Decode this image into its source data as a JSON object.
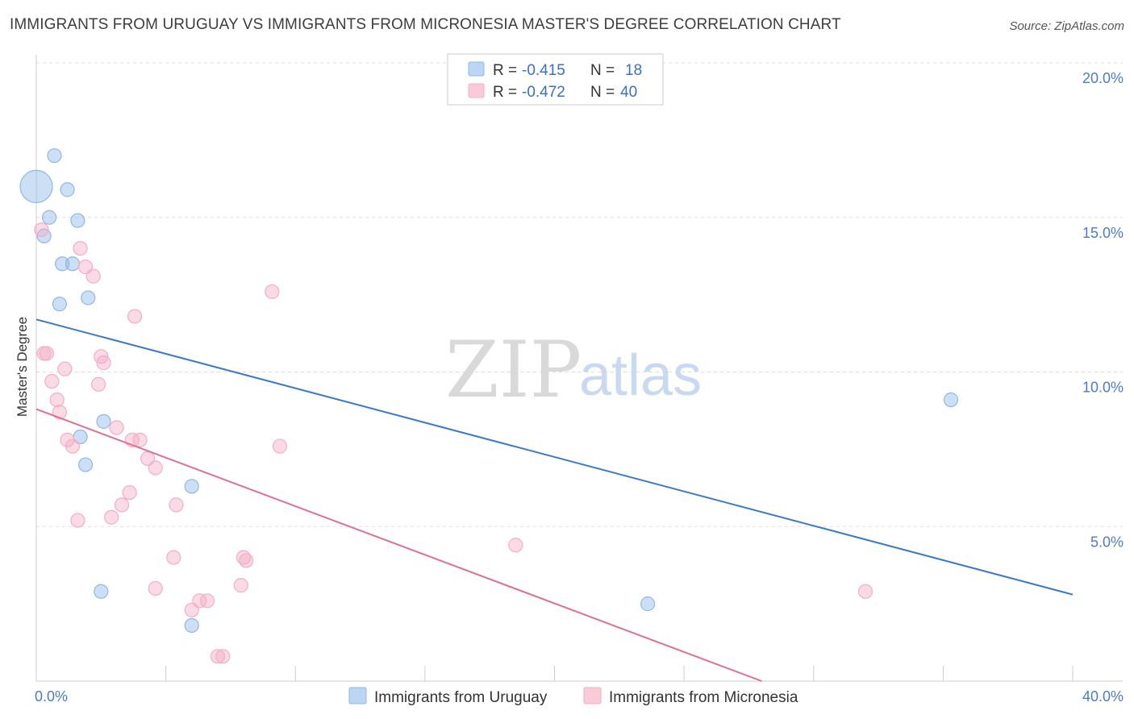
{
  "title": "IMMIGRANTS FROM URUGUAY VS IMMIGRANTS FROM MICRONESIA MASTER'S DEGREE CORRELATION CHART",
  "source": "Source: ZipAtlas.com",
  "watermark": {
    "zip": "ZIP",
    "atlas": "atlas"
  },
  "chart_data": {
    "type": "scatter",
    "title": "IMMIGRANTS FROM URUGUAY VS IMMIGRANTS FROM MICRONESIA MASTER'S DEGREE CORRELATION CHART",
    "xlabel": "",
    "ylabel": "Master's Degree",
    "xlim": [
      0,
      40
    ],
    "ylim": [
      0,
      20
    ],
    "x_tick_labels": [
      "0.0%",
      "40.0%"
    ],
    "y_ticks": [
      5,
      10,
      15,
      20
    ],
    "y_tick_labels": [
      "5.0%",
      "10.0%",
      "15.0%",
      "20.0%"
    ],
    "grid": true,
    "legend_position": "top-center",
    "series": [
      {
        "name": "Immigrants from Uruguay",
        "color": "#8fb8e8",
        "line_color": "#3a78cc",
        "R": "-0.415",
        "N": "18",
        "points": [
          {
            "x": 0.0,
            "y": 16.0,
            "big": true
          },
          {
            "x": 0.7,
            "y": 17.0
          },
          {
            "x": 1.2,
            "y": 15.9
          },
          {
            "x": 0.5,
            "y": 15.0
          },
          {
            "x": 1.6,
            "y": 14.9
          },
          {
            "x": 0.3,
            "y": 14.4
          },
          {
            "x": 1.4,
            "y": 13.5
          },
          {
            "x": 1.0,
            "y": 13.5
          },
          {
            "x": 2.0,
            "y": 12.4
          },
          {
            "x": 0.9,
            "y": 12.2
          },
          {
            "x": 2.6,
            "y": 8.4
          },
          {
            "x": 1.7,
            "y": 7.9
          },
          {
            "x": 1.9,
            "y": 7.0
          },
          {
            "x": 6.0,
            "y": 6.3
          },
          {
            "x": 2.5,
            "y": 2.9
          },
          {
            "x": 6.0,
            "y": 1.8
          },
          {
            "x": 23.6,
            "y": 2.5
          },
          {
            "x": 35.3,
            "y": 9.1
          }
        ],
        "trend": {
          "x1": 0,
          "y1": 11.7,
          "x2": 40,
          "y2": 2.8
        }
      },
      {
        "name": "Immigrants from Micronesia",
        "color": "#f4aec4",
        "line_color": "#e0708f",
        "R": "-0.472",
        "N": "40",
        "points": [
          {
            "x": 0.2,
            "y": 14.6
          },
          {
            "x": 1.7,
            "y": 14.0
          },
          {
            "x": 1.9,
            "y": 13.4
          },
          {
            "x": 2.2,
            "y": 13.1
          },
          {
            "x": 9.1,
            "y": 12.6
          },
          {
            "x": 3.8,
            "y": 11.8
          },
          {
            "x": 0.4,
            "y": 10.6
          },
          {
            "x": 0.3,
            "y": 10.6
          },
          {
            "x": 2.5,
            "y": 10.5
          },
          {
            "x": 2.6,
            "y": 10.3
          },
          {
            "x": 1.1,
            "y": 10.1
          },
          {
            "x": 0.6,
            "y": 9.7
          },
          {
            "x": 2.4,
            "y": 9.6
          },
          {
            "x": 0.8,
            "y": 9.1
          },
          {
            "x": 0.9,
            "y": 8.7
          },
          {
            "x": 3.1,
            "y": 8.2
          },
          {
            "x": 1.2,
            "y": 7.8
          },
          {
            "x": 1.4,
            "y": 7.6
          },
          {
            "x": 3.7,
            "y": 7.8
          },
          {
            "x": 4.0,
            "y": 7.8
          },
          {
            "x": 9.4,
            "y": 7.6
          },
          {
            "x": 4.3,
            "y": 7.2
          },
          {
            "x": 4.6,
            "y": 6.9
          },
          {
            "x": 3.6,
            "y": 6.1
          },
          {
            "x": 3.3,
            "y": 5.7
          },
          {
            "x": 5.4,
            "y": 5.7
          },
          {
            "x": 2.9,
            "y": 5.3
          },
          {
            "x": 1.6,
            "y": 5.2
          },
          {
            "x": 18.5,
            "y": 4.4
          },
          {
            "x": 5.3,
            "y": 4.0
          },
          {
            "x": 8.0,
            "y": 4.0
          },
          {
            "x": 8.1,
            "y": 3.9
          },
          {
            "x": 4.6,
            "y": 3.0
          },
          {
            "x": 7.9,
            "y": 3.1
          },
          {
            "x": 6.3,
            "y": 2.6
          },
          {
            "x": 6.6,
            "y": 2.6
          },
          {
            "x": 6.0,
            "y": 2.3
          },
          {
            "x": 32.0,
            "y": 2.9
          },
          {
            "x": 7.0,
            "y": 0.8
          },
          {
            "x": 7.2,
            "y": 0.8
          }
        ],
        "trend": {
          "x1": 0,
          "y1": 8.8,
          "x2": 28.0,
          "y2": 0.0
        }
      }
    ]
  }
}
